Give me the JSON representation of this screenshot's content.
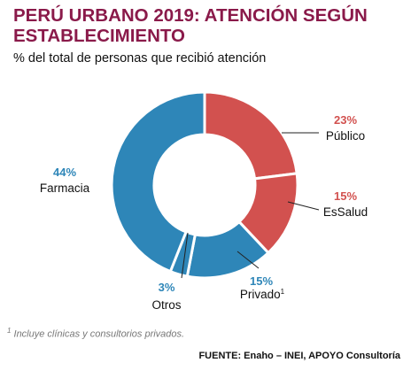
{
  "header": {
    "title": "PERÚ URBANO 2019: ATENCIÓN SEGÚN ESTABLECIMIENTO",
    "subtitle": "% del total de personas que recibió atención"
  },
  "chart_data": {
    "type": "pie",
    "donut": true,
    "slices": [
      {
        "label": "Público",
        "value": 23,
        "value_label": "23%",
        "color": "#d2514f"
      },
      {
        "label": "EsSalud",
        "value": 15,
        "value_label": "15%",
        "color": "#d2514f"
      },
      {
        "label": "Privado",
        "label_sup": "1",
        "value": 15,
        "value_label": "15%",
        "color": "#2e86b8"
      },
      {
        "label": "Otros",
        "value": 3,
        "value_label": "3%",
        "color": "#2e86b8"
      },
      {
        "label": "Farmacia",
        "value": 44,
        "value_label": "44%",
        "color": "#2e86b8"
      }
    ],
    "label_colors": {
      "red": "#d2514f",
      "blue": "#2e86b8"
    }
  },
  "footnote": {
    "marker": "1",
    "text": " Incluye clínicas y consultorios privados."
  },
  "source": "FUENTE: Enaho – INEI, APOYO Consultoría"
}
